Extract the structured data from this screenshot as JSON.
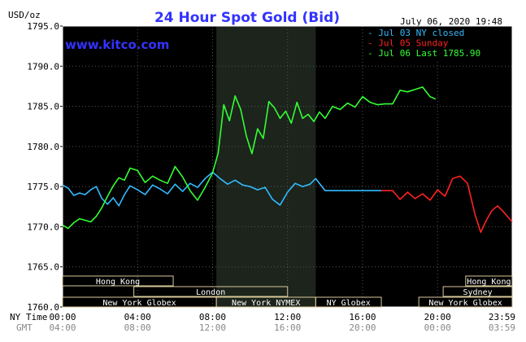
{
  "chart_data": {
    "type": "line",
    "title": "24 Hour Spot Gold (Bid)",
    "unit_label": "USD/oz",
    "website": "www.kitco.com",
    "timestamp": "July 06, 2020 19:48",
    "ylim": [
      1760.0,
      1795.0
    ],
    "y_ticks": [
      "1795.0",
      "1790.0",
      "1785.0",
      "1780.0",
      "1775.0",
      "1770.0",
      "1765.0",
      "1760.0"
    ],
    "x_axis": {
      "row1_name": "NY Time",
      "row2_name": "GMT",
      "ny_ticks": [
        "00:00",
        "04:00",
        "08:00",
        "12:00",
        "16:00",
        "20:00",
        "23:59"
      ],
      "gmt_ticks": [
        "04:00",
        "08:00",
        "12:00",
        "16:00",
        "20:00",
        "00:00",
        "03:59"
      ],
      "xlim_hours": [
        0,
        23.98
      ]
    },
    "legend": [
      {
        "label": "- Jul 03 NY closed",
        "color": "#33bbff"
      },
      {
        "label": "- Jul 05 Sunday",
        "color": "#ff2222"
      },
      {
        "label": "- Jul 06 Last 1785.90",
        "color": "#33ff33"
      }
    ],
    "sessions": [
      {
        "name": "Hong Kong",
        "row": 1,
        "start": 0,
        "end": 5.9
      },
      {
        "name": "Hong Kong",
        "row": 1,
        "start": 21.5,
        "end": 24
      },
      {
        "name": "London",
        "row": 2,
        "start": 3.8,
        "end": 12.0
      },
      {
        "name": "Sydney",
        "row": 2,
        "start": 20.3,
        "end": 24
      },
      {
        "name": "New York Globex",
        "row": 3,
        "start": 0,
        "end": 8.2
      },
      {
        "name": "New York NYMEX",
        "row": 3,
        "start": 8.2,
        "end": 13.5
      },
      {
        "name": "NY Globex",
        "row": 3,
        "start": 13.5,
        "end": 17.0
      },
      {
        "name": "New York Globex",
        "row": 3,
        "start": 19.0,
        "end": 24
      }
    ],
    "highlight_range_hours": [
      8.2,
      13.5
    ],
    "series": [
      {
        "name": "Jul 03 NY closed",
        "color": "#33bbff",
        "x": [
          0.0,
          0.3,
          0.6,
          0.9,
          1.2,
          1.5,
          1.8,
          2.1,
          2.4,
          2.7,
          3.0,
          3.3,
          3.6,
          4.0,
          4.4,
          4.8,
          5.2,
          5.6,
          6.0,
          6.4,
          6.8,
          7.2,
          7.6,
          8.0,
          8.4,
          8.8,
          9.2,
          9.6,
          10.0,
          10.4,
          10.8,
          11.2,
          11.6,
          12.0,
          12.4,
          12.8,
          13.2,
          13.5,
          14.0,
          15.0,
          16.0,
          17.0
        ],
        "y": [
          1775.2,
          1774.8,
          1773.9,
          1774.2,
          1774.0,
          1774.6,
          1775.0,
          1773.5,
          1772.8,
          1773.6,
          1772.6,
          1774.0,
          1775.1,
          1774.6,
          1774.0,
          1775.2,
          1774.7,
          1774.1,
          1775.3,
          1774.4,
          1775.4,
          1774.9,
          1776.0,
          1776.8,
          1776.0,
          1775.3,
          1775.8,
          1775.2,
          1775.0,
          1774.6,
          1774.9,
          1773.4,
          1772.7,
          1774.3,
          1775.4,
          1775.0,
          1775.3,
          1776.0,
          1774.5,
          1774.5,
          1774.5,
          1774.5
        ]
      },
      {
        "name": "Jul 05 Sunday",
        "color": "#ff2222",
        "x": [
          17.0,
          17.6,
          18.0,
          18.4,
          18.8,
          19.2,
          19.6,
          20.0,
          20.4,
          20.8,
          21.2,
          21.6,
          22.0,
          22.3,
          22.6,
          22.9,
          23.2,
          23.5,
          23.98
        ],
        "y": [
          1774.5,
          1774.5,
          1773.4,
          1774.3,
          1773.5,
          1774.1,
          1773.3,
          1774.6,
          1773.8,
          1776.0,
          1776.3,
          1775.4,
          1771.5,
          1769.3,
          1770.8,
          1772.0,
          1772.6,
          1771.9,
          1770.6
        ]
      },
      {
        "name": "Jul 06 Last 1785.90",
        "color": "#33ff33",
        "x": [
          0.0,
          0.3,
          0.6,
          0.9,
          1.2,
          1.5,
          1.8,
          2.1,
          2.4,
          2.7,
          3.0,
          3.3,
          3.6,
          4.0,
          4.4,
          4.8,
          5.2,
          5.6,
          6.0,
          6.4,
          6.8,
          7.2,
          7.6,
          8.0,
          8.3,
          8.6,
          8.9,
          9.2,
          9.5,
          9.8,
          10.1,
          10.4,
          10.7,
          11.0,
          11.3,
          11.6,
          11.9,
          12.2,
          12.5,
          12.8,
          13.1,
          13.4,
          13.7,
          14.0,
          14.4,
          14.8,
          15.2,
          15.6,
          16.0,
          16.4,
          16.8,
          17.2,
          17.6,
          18.0,
          18.4,
          18.8,
          19.2,
          19.6,
          19.9
        ],
        "y": [
          1770.2,
          1769.8,
          1770.5,
          1771.0,
          1770.8,
          1770.6,
          1771.3,
          1772.4,
          1773.8,
          1775.1,
          1776.1,
          1775.8,
          1777.3,
          1777.0,
          1775.5,
          1776.3,
          1775.8,
          1775.4,
          1777.5,
          1776.2,
          1774.5,
          1773.3,
          1774.9,
          1776.7,
          1779.2,
          1785.2,
          1783.2,
          1786.3,
          1784.6,
          1781.3,
          1779.1,
          1782.2,
          1781.0,
          1785.6,
          1784.8,
          1783.5,
          1784.4,
          1782.9,
          1785.5,
          1783.5,
          1784.0,
          1783.1,
          1784.3,
          1783.5,
          1785.0,
          1784.6,
          1785.4,
          1784.9,
          1786.2,
          1785.5,
          1785.2,
          1785.3,
          1785.3,
          1787.0,
          1786.8,
          1787.1,
          1787.4,
          1786.2,
          1785.9
        ]
      }
    ]
  },
  "colors": {
    "background": "#000000",
    "frame": "#ffffff",
    "title": "#3333ff",
    "site": "#3333ff",
    "session_border": "#d8c89a",
    "session_text": "#ffffff",
    "gmt_text": "#888888",
    "highlight": "#1c241c"
  }
}
